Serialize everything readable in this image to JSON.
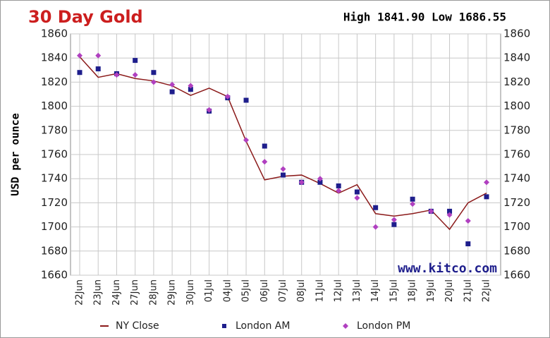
{
  "chart_data": {
    "type": "line",
    "title": "30 Day Gold",
    "header": "High 1841.90 Low 1686.55",
    "ylabel": "USD per ounce",
    "watermark": "www.kitco.com",
    "categories": [
      "22Jun",
      "23Jun",
      "24Jun",
      "27Jun",
      "28Jun",
      "29Jun",
      "30Jun",
      "01Jul",
      "04Jul",
      "05Jul",
      "06Jul",
      "07Jul",
      "08Jul",
      "11Jul",
      "12Jul",
      "13Jul",
      "14Jul",
      "15Jul",
      "18Jul",
      "19Jul",
      "20Jul",
      "21Jul",
      "22Jul"
    ],
    "series": [
      {
        "name": "NY Close",
        "color": "#8b1a1a",
        "marker": "line",
        "values": [
          1841,
          1824,
          1827,
          1823,
          1821,
          1817,
          1809,
          1815,
          1808,
          1771,
          1739,
          1742,
          1743,
          1736,
          1728,
          1735,
          1711,
          1709,
          1711,
          1714,
          1698,
          1720,
          1728
        ]
      },
      {
        "name": "London AM",
        "color": "#1e1e8c",
        "marker": "square",
        "values": [
          1828,
          1831,
          1827,
          1838,
          1828,
          1812,
          1814,
          1796,
          1807,
          1805,
          1767,
          1743,
          1737,
          1737,
          1734,
          1729,
          1716,
          1702,
          1723,
          1713,
          1713,
          1686,
          1725
        ]
      },
      {
        "name": "London PM",
        "color": "#b040c0",
        "marker": "diamond",
        "values": [
          1842,
          1842,
          1826,
          1826,
          1820,
          1818,
          1817,
          1797,
          1808,
          1772,
          1754,
          1748,
          1737,
          1740,
          1730,
          1724,
          1700,
          1706,
          1719,
          1713,
          1710,
          1705,
          1737
        ]
      }
    ],
    "ylim": [
      1660,
      1860
    ],
    "yticks": [
      1660,
      1680,
      1700,
      1720,
      1740,
      1760,
      1780,
      1800,
      1820,
      1840,
      1860
    ],
    "grid": true
  }
}
